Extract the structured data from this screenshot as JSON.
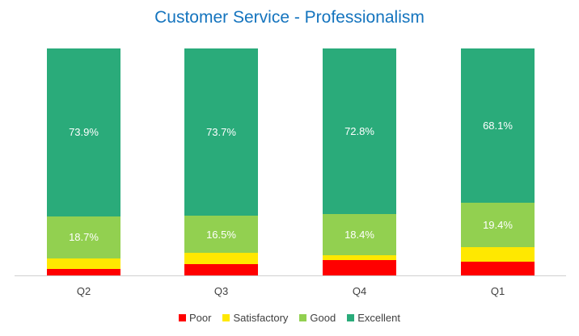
{
  "chart_data": {
    "type": "bar",
    "stacked": true,
    "percent": true,
    "title": "Customer Service - Professionalism",
    "xlabel": "",
    "ylabel": "",
    "ylim": [
      0,
      100
    ],
    "grid": false,
    "legend_position": "bottom",
    "categories": [
      "Q2",
      "Q3",
      "Q4",
      "Q1"
    ],
    "series": [
      {
        "name": "Poor",
        "color": "#ff0000",
        "values": [
          2.8,
          4.9,
          6.8,
          6.0
        ],
        "labels": [
          "",
          "",
          "",
          ""
        ]
      },
      {
        "name": "Satisfactory",
        "color": "#ffe800",
        "values": [
          4.6,
          4.9,
          2.0,
          6.5
        ],
        "labels": [
          "",
          "",
          "",
          ""
        ]
      },
      {
        "name": "Good",
        "color": "#92d050",
        "values": [
          18.7,
          16.5,
          18.4,
          19.4
        ],
        "labels": [
          "18.7%",
          "16.5%",
          "18.4%",
          "19.4%"
        ]
      },
      {
        "name": "Excellent",
        "color": "#2aab7a",
        "values": [
          73.9,
          73.7,
          72.8,
          68.1
        ],
        "labels": [
          "73.9%",
          "73.7%",
          "72.8%",
          "68.1%"
        ]
      }
    ]
  }
}
